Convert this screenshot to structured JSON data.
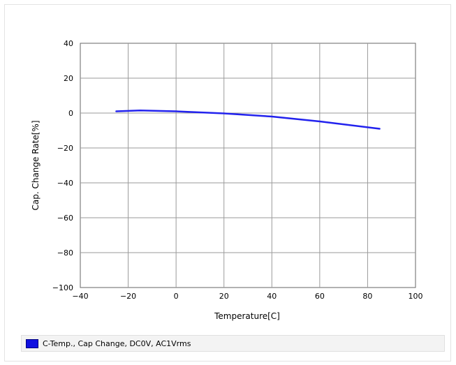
{
  "chart_data": {
    "type": "line",
    "title": "",
    "xlabel": "Temperature[C]",
    "ylabel": "Cap. Change Rate[%]",
    "xlim": [
      -40,
      100
    ],
    "ylim": [
      -100,
      40
    ],
    "xticks": [
      -40,
      -20,
      0,
      20,
      40,
      60,
      80,
      100
    ],
    "yticks": [
      40,
      20,
      0,
      -20,
      -40,
      -60,
      -80,
      -100
    ],
    "grid": true,
    "legend_position": "bottom",
    "series": [
      {
        "name": "C-Temp., Cap Change, DC0V, AC1Vrms",
        "color": "#2222ee",
        "x": [
          -25,
          -15,
          0,
          20,
          40,
          60,
          85
        ],
        "y": [
          1.0,
          1.5,
          1.0,
          -0.2,
          -2.0,
          -4.8,
          -9.0
        ]
      }
    ]
  }
}
